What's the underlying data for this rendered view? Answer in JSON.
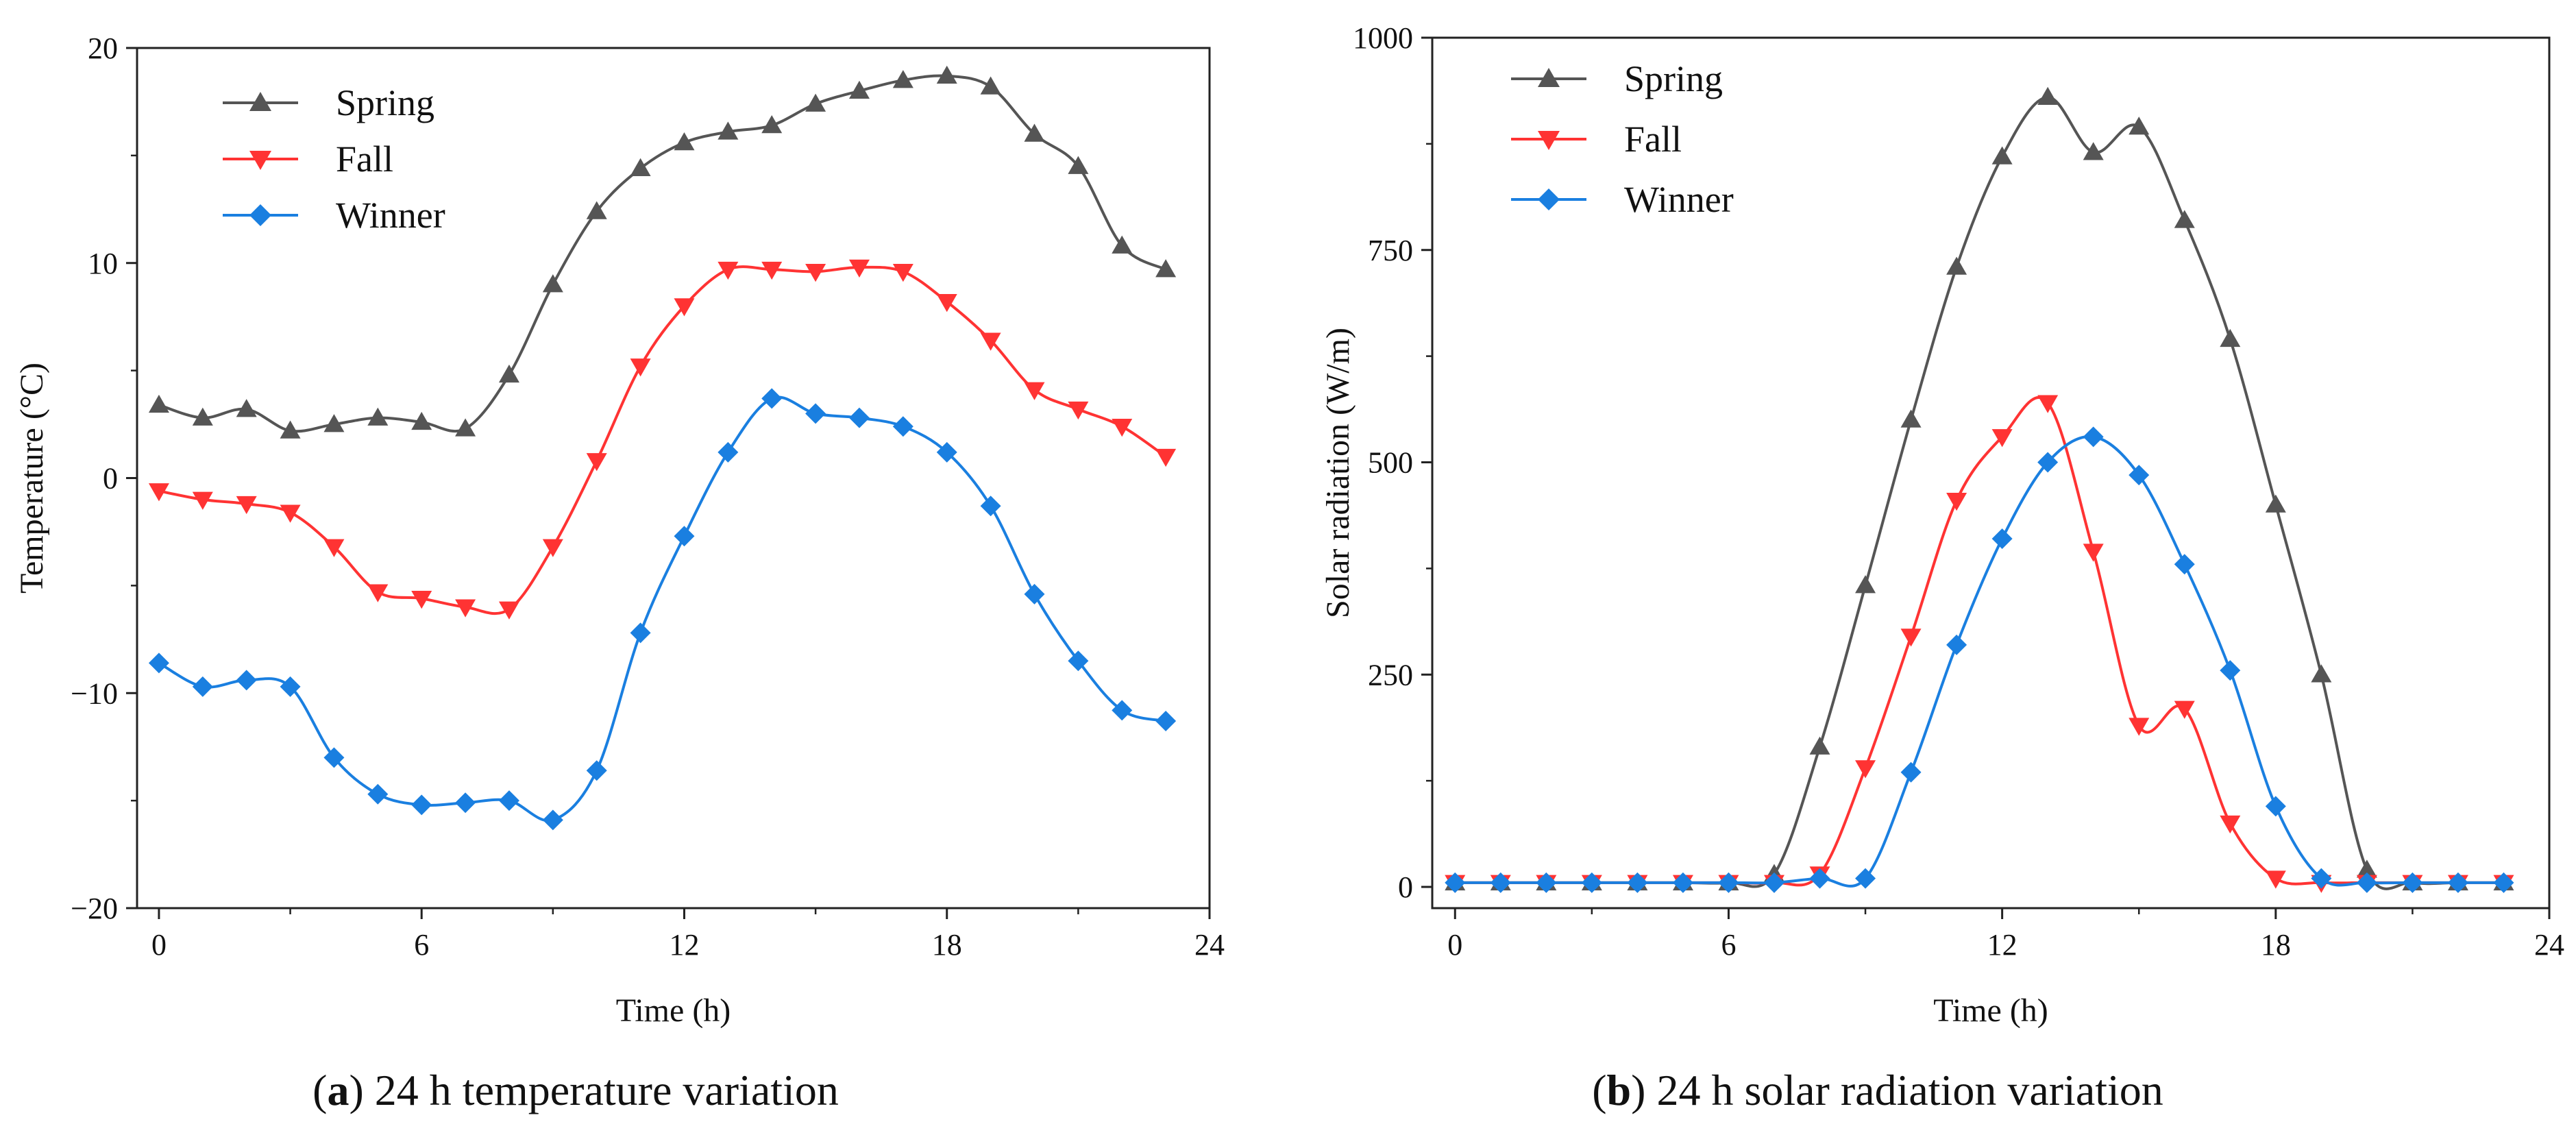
{
  "chart_data": [
    {
      "id": "temp",
      "type": "line",
      "title": "",
      "xlabel": "Time (h)",
      "ylabel": "Temperature (°C)",
      "xlim": [
        -0.5,
        24
      ],
      "ylim": [
        -20,
        20
      ],
      "xticks": [
        0,
        6,
        12,
        18,
        24
      ],
      "yticks": [
        -20,
        -10,
        0,
        10,
        20
      ],
      "xtick_labels": [
        "0",
        "6",
        "12",
        "18",
        "24"
      ],
      "ytick_labels": [
        "−20",
        "−10",
        "0",
        "10",
        "20"
      ],
      "legend_position": "top-left",
      "x": [
        0,
        1,
        2,
        3,
        4,
        5,
        6,
        7,
        8,
        9,
        10,
        11,
        12,
        13,
        14,
        15,
        16,
        17,
        18,
        19,
        20,
        21,
        22,
        23
      ],
      "series": [
        {
          "name": "Spring",
          "marker": "triangle-up",
          "color": "#555555",
          "values": [
            3.4,
            2.8,
            3.2,
            2.2,
            2.5,
            2.8,
            2.6,
            2.3,
            4.8,
            9.0,
            12.4,
            14.4,
            15.6,
            16.1,
            16.4,
            17.4,
            18.0,
            18.5,
            18.7,
            18.2,
            16.0,
            14.5,
            10.8,
            9.7
          ]
        },
        {
          "name": "Fall",
          "marker": "triangle-down",
          "color": "#ff3333",
          "values": [
            -0.6,
            -1.0,
            -1.2,
            -1.6,
            -3.2,
            -5.3,
            -5.6,
            -6.0,
            -6.1,
            -3.2,
            0.8,
            5.2,
            8.0,
            9.7,
            9.7,
            9.6,
            9.8,
            9.6,
            8.2,
            6.4,
            4.1,
            3.2,
            2.4,
            1.0
          ]
        },
        {
          "name": "Winner",
          "marker": "diamond",
          "color": "#1a7fe0",
          "values": [
            -8.6,
            -9.7,
            -9.4,
            -9.7,
            -13.0,
            -14.7,
            -15.2,
            -15.1,
            -15.0,
            -15.9,
            -13.6,
            -7.2,
            -2.7,
            1.2,
            3.7,
            3.0,
            2.8,
            2.4,
            1.2,
            -1.3,
            -5.4,
            -8.5,
            -10.8,
            -11.3
          ]
        }
      ]
    },
    {
      "id": "solar",
      "type": "line",
      "title": "",
      "xlabel": "Time (h)",
      "ylabel": "Solar radiation (W/m)",
      "xlim": [
        -0.5,
        24
      ],
      "ylim": [
        -25,
        1000
      ],
      "xticks": [
        0,
        6,
        12,
        18,
        24
      ],
      "yticks": [
        0,
        250,
        500,
        750,
        1000
      ],
      "xtick_labels": [
        "0",
        "6",
        "12",
        "18",
        "24"
      ],
      "ytick_labels": [
        "0",
        "250",
        "500",
        "750",
        "1000"
      ],
      "legend_position": "top-left",
      "x": [
        0,
        1,
        2,
        3,
        4,
        5,
        6,
        7,
        8,
        9,
        10,
        11,
        12,
        13,
        14,
        15,
        16,
        17,
        18,
        19,
        20,
        21,
        22,
        23
      ],
      "series": [
        {
          "name": "Spring",
          "marker": "triangle-up",
          "color": "#555555",
          "values": [
            5,
            5,
            5,
            5,
            5,
            5,
            5,
            15,
            165,
            355,
            550,
            730,
            860,
            930,
            865,
            895,
            785,
            645,
            450,
            250,
            20,
            5,
            5,
            5
          ]
        },
        {
          "name": "Fall",
          "marker": "triangle-down",
          "color": "#ff3333",
          "values": [
            5,
            5,
            5,
            5,
            5,
            5,
            5,
            5,
            15,
            140,
            295,
            455,
            530,
            570,
            395,
            190,
            210,
            75,
            10,
            5,
            5,
            5,
            5,
            5
          ]
        },
        {
          "name": "Winner",
          "marker": "diamond",
          "color": "#1a7fe0",
          "values": [
            5,
            5,
            5,
            5,
            5,
            5,
            5,
            5,
            10,
            10,
            135,
            285,
            410,
            500,
            530,
            485,
            380,
            255,
            95,
            10,
            5,
            5,
            5,
            5
          ]
        }
      ]
    }
  ],
  "captions": {
    "a_letter": "a",
    "a_text": " 24 h temperature variation",
    "b_letter": "b",
    "b_text": " 24 h solar radiation variation"
  }
}
